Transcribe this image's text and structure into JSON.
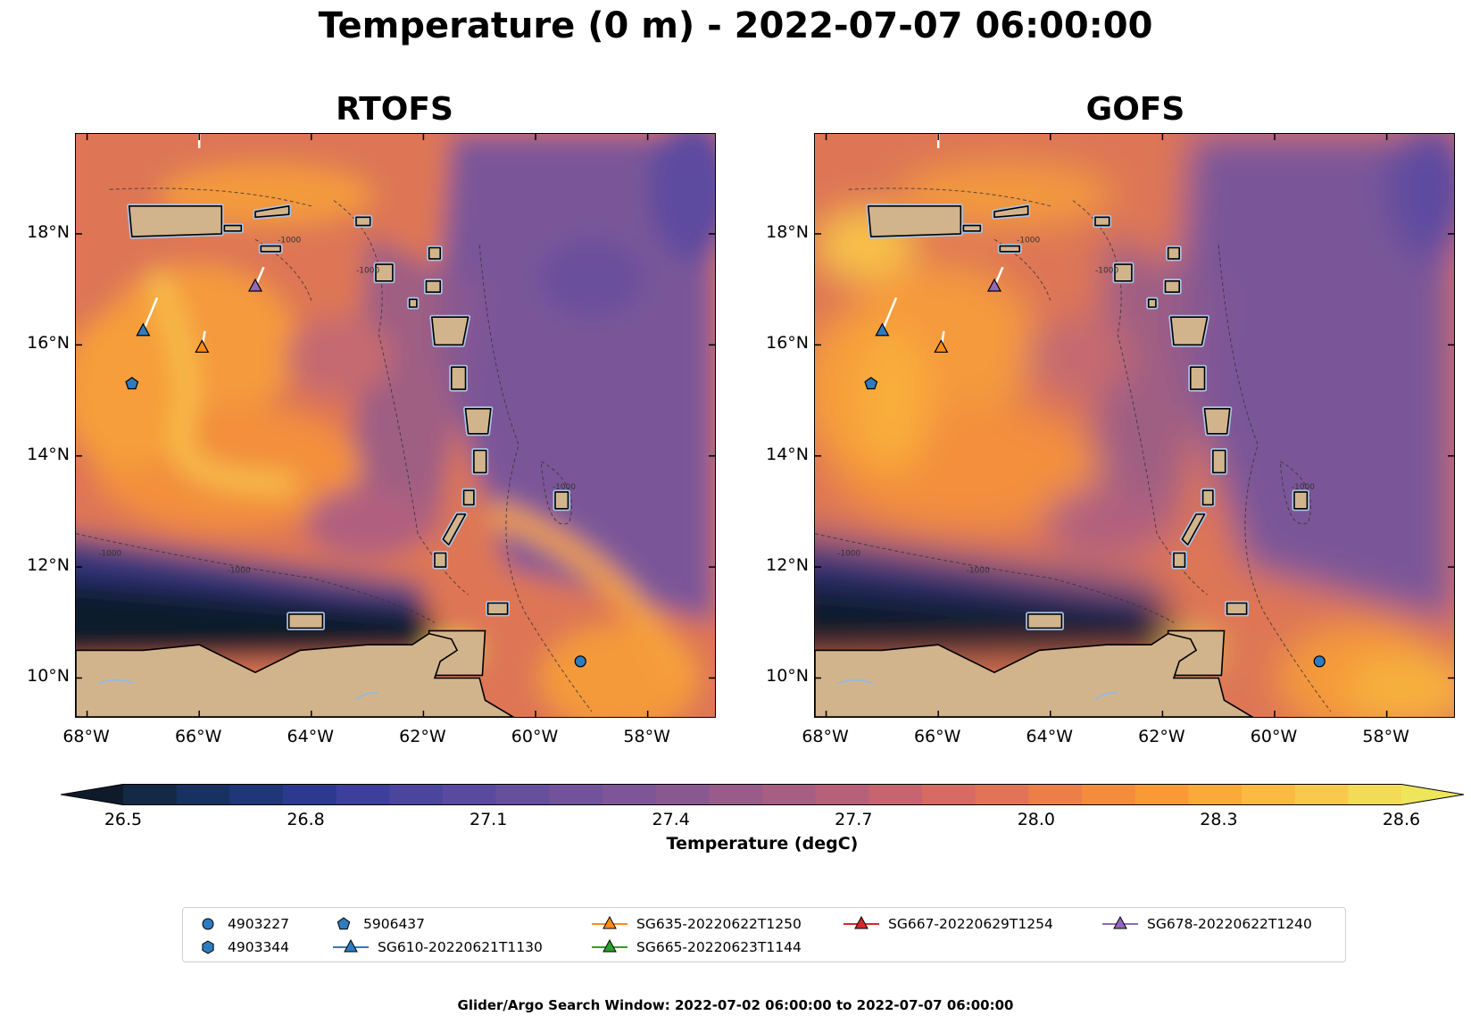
{
  "title": "Temperature (0 m) - 2022-07-07 06:00:00",
  "panels": [
    {
      "title": "RTOFS",
      "model": "rtofs"
    },
    {
      "title": "GOFS",
      "model": "gofs"
    }
  ],
  "lat_ticks": [
    {
      "value": 18,
      "label": "18°N"
    },
    {
      "value": 16,
      "label": "16°N"
    },
    {
      "value": 14,
      "label": "14°N"
    },
    {
      "value": 12,
      "label": "12°N"
    },
    {
      "value": 10,
      "label": "10°N"
    }
  ],
  "lon_ticks": [
    {
      "value": -68,
      "label": "68°W"
    },
    {
      "value": -66,
      "label": "66°W"
    },
    {
      "value": -64,
      "label": "64°W"
    },
    {
      "value": -62,
      "label": "62°W"
    },
    {
      "value": -60,
      "label": "60°W"
    },
    {
      "value": -58,
      "label": "58°W"
    }
  ],
  "extent": {
    "lon": [
      -68.2,
      -56.8
    ],
    "lat": [
      9.3,
      19.8
    ]
  },
  "bathymetry_label": "-1000",
  "colorbar": {
    "label": "Temperature (degC)",
    "min": 26.5,
    "max": 28.6,
    "ticks": [
      "26.5",
      "26.8",
      "27.1",
      "27.4",
      "27.7",
      "28.0",
      "28.3",
      "28.6"
    ],
    "colors": [
      "#0f1b2b",
      "#122a46",
      "#173260",
      "#1f3778",
      "#2c3a8e",
      "#3d3f9a",
      "#4c459e",
      "#5a4a9f",
      "#664f9d",
      "#72529a",
      "#7e5596",
      "#8a5891",
      "#985b8a",
      "#a75e82",
      "#b66179",
      "#c5656f",
      "#d66b63",
      "#e17456",
      "#ec7f49",
      "#f48c3d",
      "#f99a36",
      "#fba93a",
      "#fcb943",
      "#f8c94e",
      "#f3da59",
      "#eee65a"
    ]
  },
  "colors": {
    "land": "#d2b48c",
    "shelf": "#a9c3e6",
    "warm": "#f59a3c",
    "mid": "#c96a72",
    "cool": "#7a5698",
    "cold": "#0f1b2b"
  },
  "platforms": [
    {
      "id": "4903227",
      "marker": "circle",
      "color": "#2f7bbf",
      "lon": -59.2,
      "lat": 10.3
    },
    {
      "id": "4903344",
      "marker": "hexagon",
      "color": "#2f7bbf"
    },
    {
      "id": "5906437",
      "marker": "pentagon",
      "color": "#2f7bbf",
      "lon": -67.2,
      "lat": 15.3
    },
    {
      "id": "SG610-20220621T1130",
      "marker": "triangle",
      "color": "#2f7bbf",
      "line": "#2f7bbf",
      "lon": -67.0,
      "lat": 16.25,
      "track": [
        [
          -66.75,
          16.85
        ],
        [
          -67.0,
          16.25
        ]
      ]
    },
    {
      "id": "SG635-20220622T1250",
      "marker": "triangle",
      "color": "#ff8c1a",
      "line": "#ff8c1a",
      "lon": -65.95,
      "lat": 15.95,
      "track": [
        [
          -65.9,
          16.25
        ],
        [
          -65.95,
          15.95
        ]
      ]
    },
    {
      "id": "SG665-20220623T1144",
      "marker": "triangle",
      "color": "#2ca02c",
      "line": "#2ca02c"
    },
    {
      "id": "SG667-20220629T1254",
      "marker": "triangle",
      "color": "#d62728",
      "line": "#d62728"
    },
    {
      "id": "SG678-20220622T1240",
      "marker": "triangle",
      "color": "#9467bd",
      "line": "#9467bd",
      "lon": -65.0,
      "lat": 17.05,
      "track": [
        [
          -64.85,
          17.4
        ],
        [
          -65.0,
          17.05
        ]
      ]
    }
  ],
  "footer": "Glider/Argo Search Window: 2022-07-02 06:00:00 to 2022-07-07 06:00:00"
}
